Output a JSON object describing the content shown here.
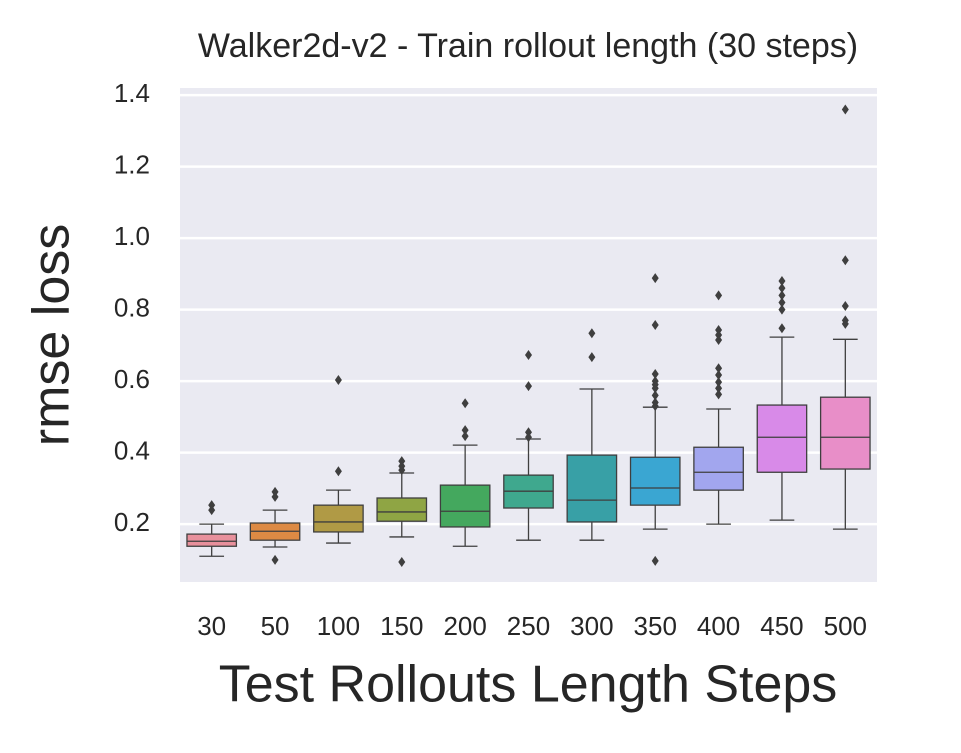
{
  "chart_data": {
    "type": "box",
    "title": "Walker2d-v2 - Train rollout length (30 steps)",
    "xlabel": "Test Rollouts Length Steps",
    "ylabel": "rmse loss",
    "categories": [
      "30",
      "50",
      "100",
      "150",
      "200",
      "250",
      "300",
      "350",
      "400",
      "450",
      "500"
    ],
    "colors": [
      "#e8909c",
      "#dd8a44",
      "#b09a45",
      "#8fa544",
      "#44a85e",
      "#3fa88e",
      "#38a0a6",
      "#3aa6d2",
      "#a2a6ee",
      "#d88ae8",
      "#e88ec8"
    ],
    "boxes": [
      {
        "whislo": 0.11,
        "q1": 0.138,
        "med": 0.152,
        "q3": 0.172,
        "whishi": 0.2,
        "fliers": [
          0.253,
          0.239
        ]
      },
      {
        "whislo": 0.136,
        "q1": 0.155,
        "med": 0.18,
        "q3": 0.203,
        "whishi": 0.239,
        "fliers": [
          0.29,
          0.276,
          0.1
        ]
      },
      {
        "whislo": 0.147,
        "q1": 0.178,
        "med": 0.206,
        "q3": 0.253,
        "whishi": 0.295,
        "fliers": [
          0.603,
          0.348
        ]
      },
      {
        "whislo": 0.164,
        "q1": 0.208,
        "med": 0.234,
        "q3": 0.273,
        "whishi": 0.343,
        "fliers": [
          0.376,
          0.362,
          0.351,
          0.094
        ]
      },
      {
        "whislo": 0.138,
        "q1": 0.192,
        "med": 0.236,
        "q3": 0.309,
        "whishi": 0.421,
        "fliers": [
          0.538,
          0.463,
          0.446
        ]
      },
      {
        "whislo": 0.155,
        "q1": 0.245,
        "med": 0.292,
        "q3": 0.337,
        "whishi": 0.438,
        "fliers": [
          0.673,
          0.586,
          0.457,
          0.443
        ]
      },
      {
        "whislo": 0.155,
        "q1": 0.206,
        "med": 0.267,
        "q3": 0.393,
        "whishi": 0.578,
        "fliers": [
          0.734,
          0.667
        ]
      },
      {
        "whislo": 0.186,
        "q1": 0.253,
        "med": 0.301,
        "q3": 0.387,
        "whishi": 0.527,
        "fliers": [
          0.888,
          0.757,
          0.62,
          0.6,
          0.59,
          0.58,
          0.56,
          0.54,
          0.53,
          0.097
        ]
      },
      {
        "whislo": 0.2,
        "q1": 0.295,
        "med": 0.345,
        "q3": 0.415,
        "whishi": 0.522,
        "fliers": [
          0.84,
          0.743,
          0.729,
          0.715,
          0.636,
          0.617,
          0.597,
          0.58,
          0.563
        ]
      },
      {
        "whislo": 0.211,
        "q1": 0.345,
        "med": 0.443,
        "q3": 0.533,
        "whishi": 0.723,
        "fliers": [
          0.88,
          0.86,
          0.84,
          0.82,
          0.8,
          0.748
        ]
      },
      {
        "whislo": 0.186,
        "q1": 0.354,
        "med": 0.443,
        "q3": 0.555,
        "whishi": 0.717,
        "fliers": [
          1.36,
          0.938,
          0.81,
          0.77,
          0.76
        ]
      }
    ],
    "ylim": [
      0.038,
      1.42
    ],
    "yticks": [
      0.2,
      0.4,
      0.6,
      0.8,
      {
        "value": 1,
        "label": "1.0"
      },
      1.2,
      1.4
    ],
    "grid": true
  }
}
